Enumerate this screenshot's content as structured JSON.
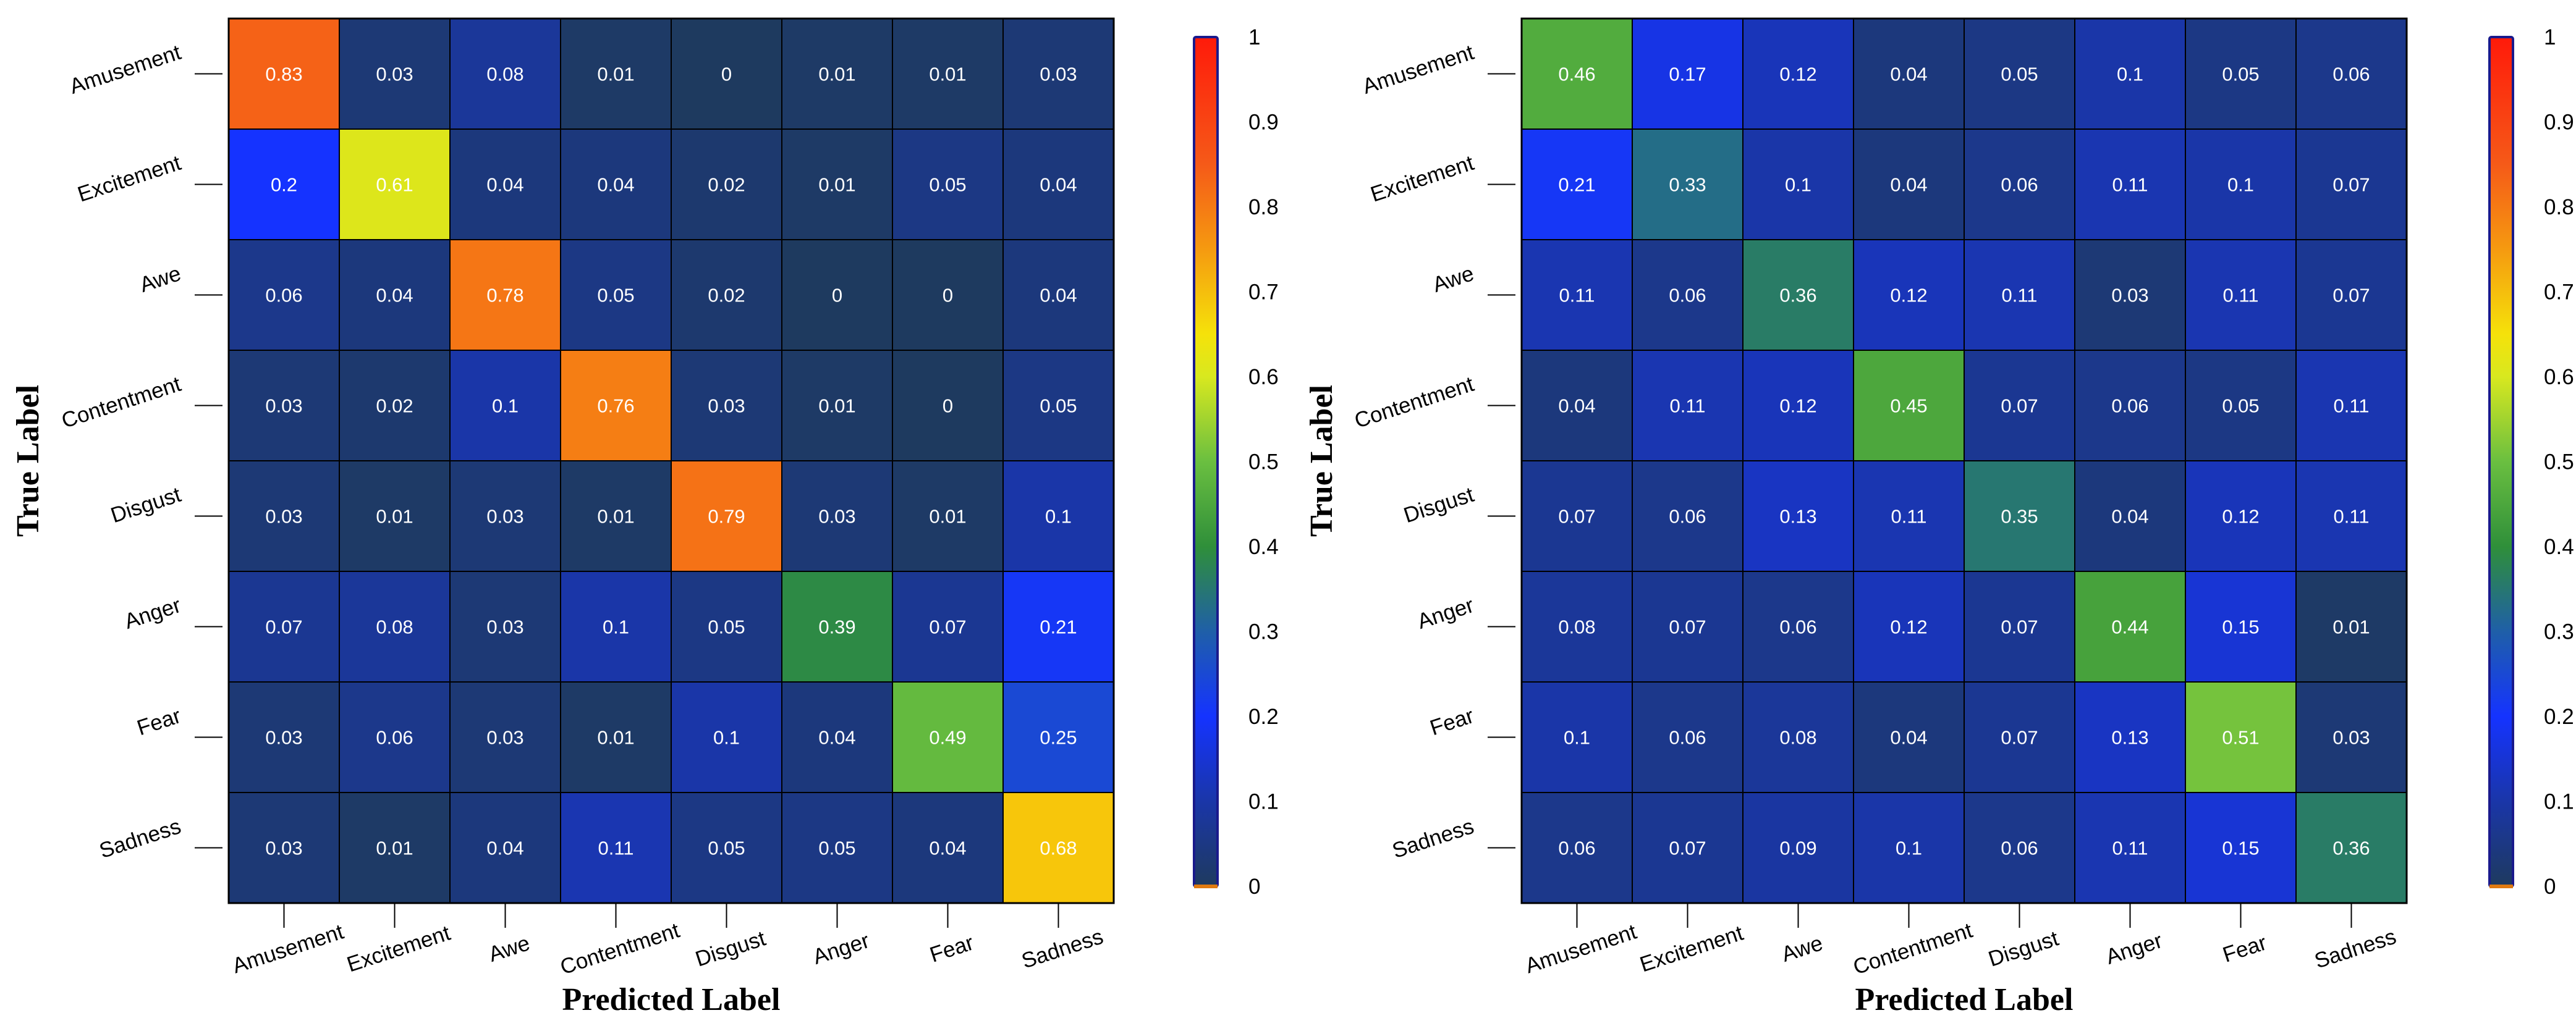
{
  "chart_data": [
    {
      "type": "heatmap",
      "title": "",
      "xlabel": "Predicted Label",
      "ylabel": "True Label",
      "x_categories": [
        "Amusement",
        "Excitement",
        "Awe",
        "Contentment",
        "Disgust",
        "Anger",
        "Fear",
        "Sadness"
      ],
      "y_categories": [
        "Amusement",
        "Excitement",
        "Awe",
        "Contentment",
        "Disgust",
        "Anger",
        "Fear",
        "Sadness"
      ],
      "values": [
        [
          0.83,
          0.03,
          0.08,
          0.01,
          0.0,
          0.01,
          0.01,
          0.03
        ],
        [
          0.2,
          0.61,
          0.04,
          0.04,
          0.02,
          0.01,
          0.05,
          0.04
        ],
        [
          0.06,
          0.04,
          0.78,
          0.05,
          0.02,
          0.0,
          0.0,
          0.04
        ],
        [
          0.03,
          0.02,
          0.1,
          0.76,
          0.03,
          0.01,
          0.0,
          0.05
        ],
        [
          0.03,
          0.01,
          0.03,
          0.01,
          0.79,
          0.03,
          0.01,
          0.1
        ],
        [
          0.07,
          0.08,
          0.03,
          0.1,
          0.05,
          0.39,
          0.07,
          0.21
        ],
        [
          0.03,
          0.06,
          0.03,
          0.01,
          0.1,
          0.04,
          0.49,
          0.25
        ],
        [
          0.03,
          0.01,
          0.04,
          0.11,
          0.05,
          0.05,
          0.04,
          0.68
        ]
      ],
      "colorbar": {
        "range": [
          0,
          1
        ],
        "ticks": [
          "0",
          "0.1",
          "0.2",
          "0.3",
          "0.4",
          "0.5",
          "0.6",
          "0.7",
          "0.8",
          "0.9",
          "1"
        ]
      }
    },
    {
      "type": "heatmap",
      "title": "",
      "xlabel": "Predicted Label",
      "ylabel": "True Label",
      "x_categories": [
        "Amusement",
        "Excitement",
        "Awe",
        "Contentment",
        "Disgust",
        "Anger",
        "Fear",
        "Sadness"
      ],
      "y_categories": [
        "Amusement",
        "Excitement",
        "Awe",
        "Contentment",
        "Disgust",
        "Anger",
        "Fear",
        "Sadness"
      ],
      "values": [
        [
          0.46,
          0.17,
          0.12,
          0.04,
          0.05,
          0.1,
          0.05,
          0.06
        ],
        [
          0.21,
          0.33,
          0.1,
          0.04,
          0.06,
          0.11,
          0.1,
          0.07
        ],
        [
          0.11,
          0.06,
          0.36,
          0.12,
          0.11,
          0.03,
          0.11,
          0.07
        ],
        [
          0.04,
          0.11,
          0.12,
          0.45,
          0.07,
          0.06,
          0.05,
          0.11
        ],
        [
          0.07,
          0.06,
          0.13,
          0.11,
          0.35,
          0.04,
          0.12,
          0.11
        ],
        [
          0.08,
          0.07,
          0.06,
          0.12,
          0.07,
          0.44,
          0.15,
          0.01
        ],
        [
          0.1,
          0.06,
          0.08,
          0.04,
          0.07,
          0.13,
          0.51,
          0.03
        ],
        [
          0.06,
          0.07,
          0.09,
          0.1,
          0.06,
          0.11,
          0.15,
          0.36
        ]
      ],
      "colorbar": {
        "range": [
          0,
          1
        ],
        "ticks": [
          "0",
          "0.1",
          "0.2",
          "0.3",
          "0.4",
          "0.5",
          "0.6",
          "0.7",
          "0.8",
          "0.9",
          "1"
        ]
      }
    }
  ],
  "colors": {
    "stops": [
      "#1e3a5f",
      "#1533c8",
      "#1f5fa8",
      "#2f8f3a",
      "#6abf40",
      "#d8e81f",
      "#f5d70a",
      "#f57a1a",
      "#f03c20",
      "#ff1a0a"
    ],
    "grid_line": "#000000",
    "colorbar_border_top": "#1a1a8c",
    "colorbar_border_bottom": "#e07a10"
  }
}
